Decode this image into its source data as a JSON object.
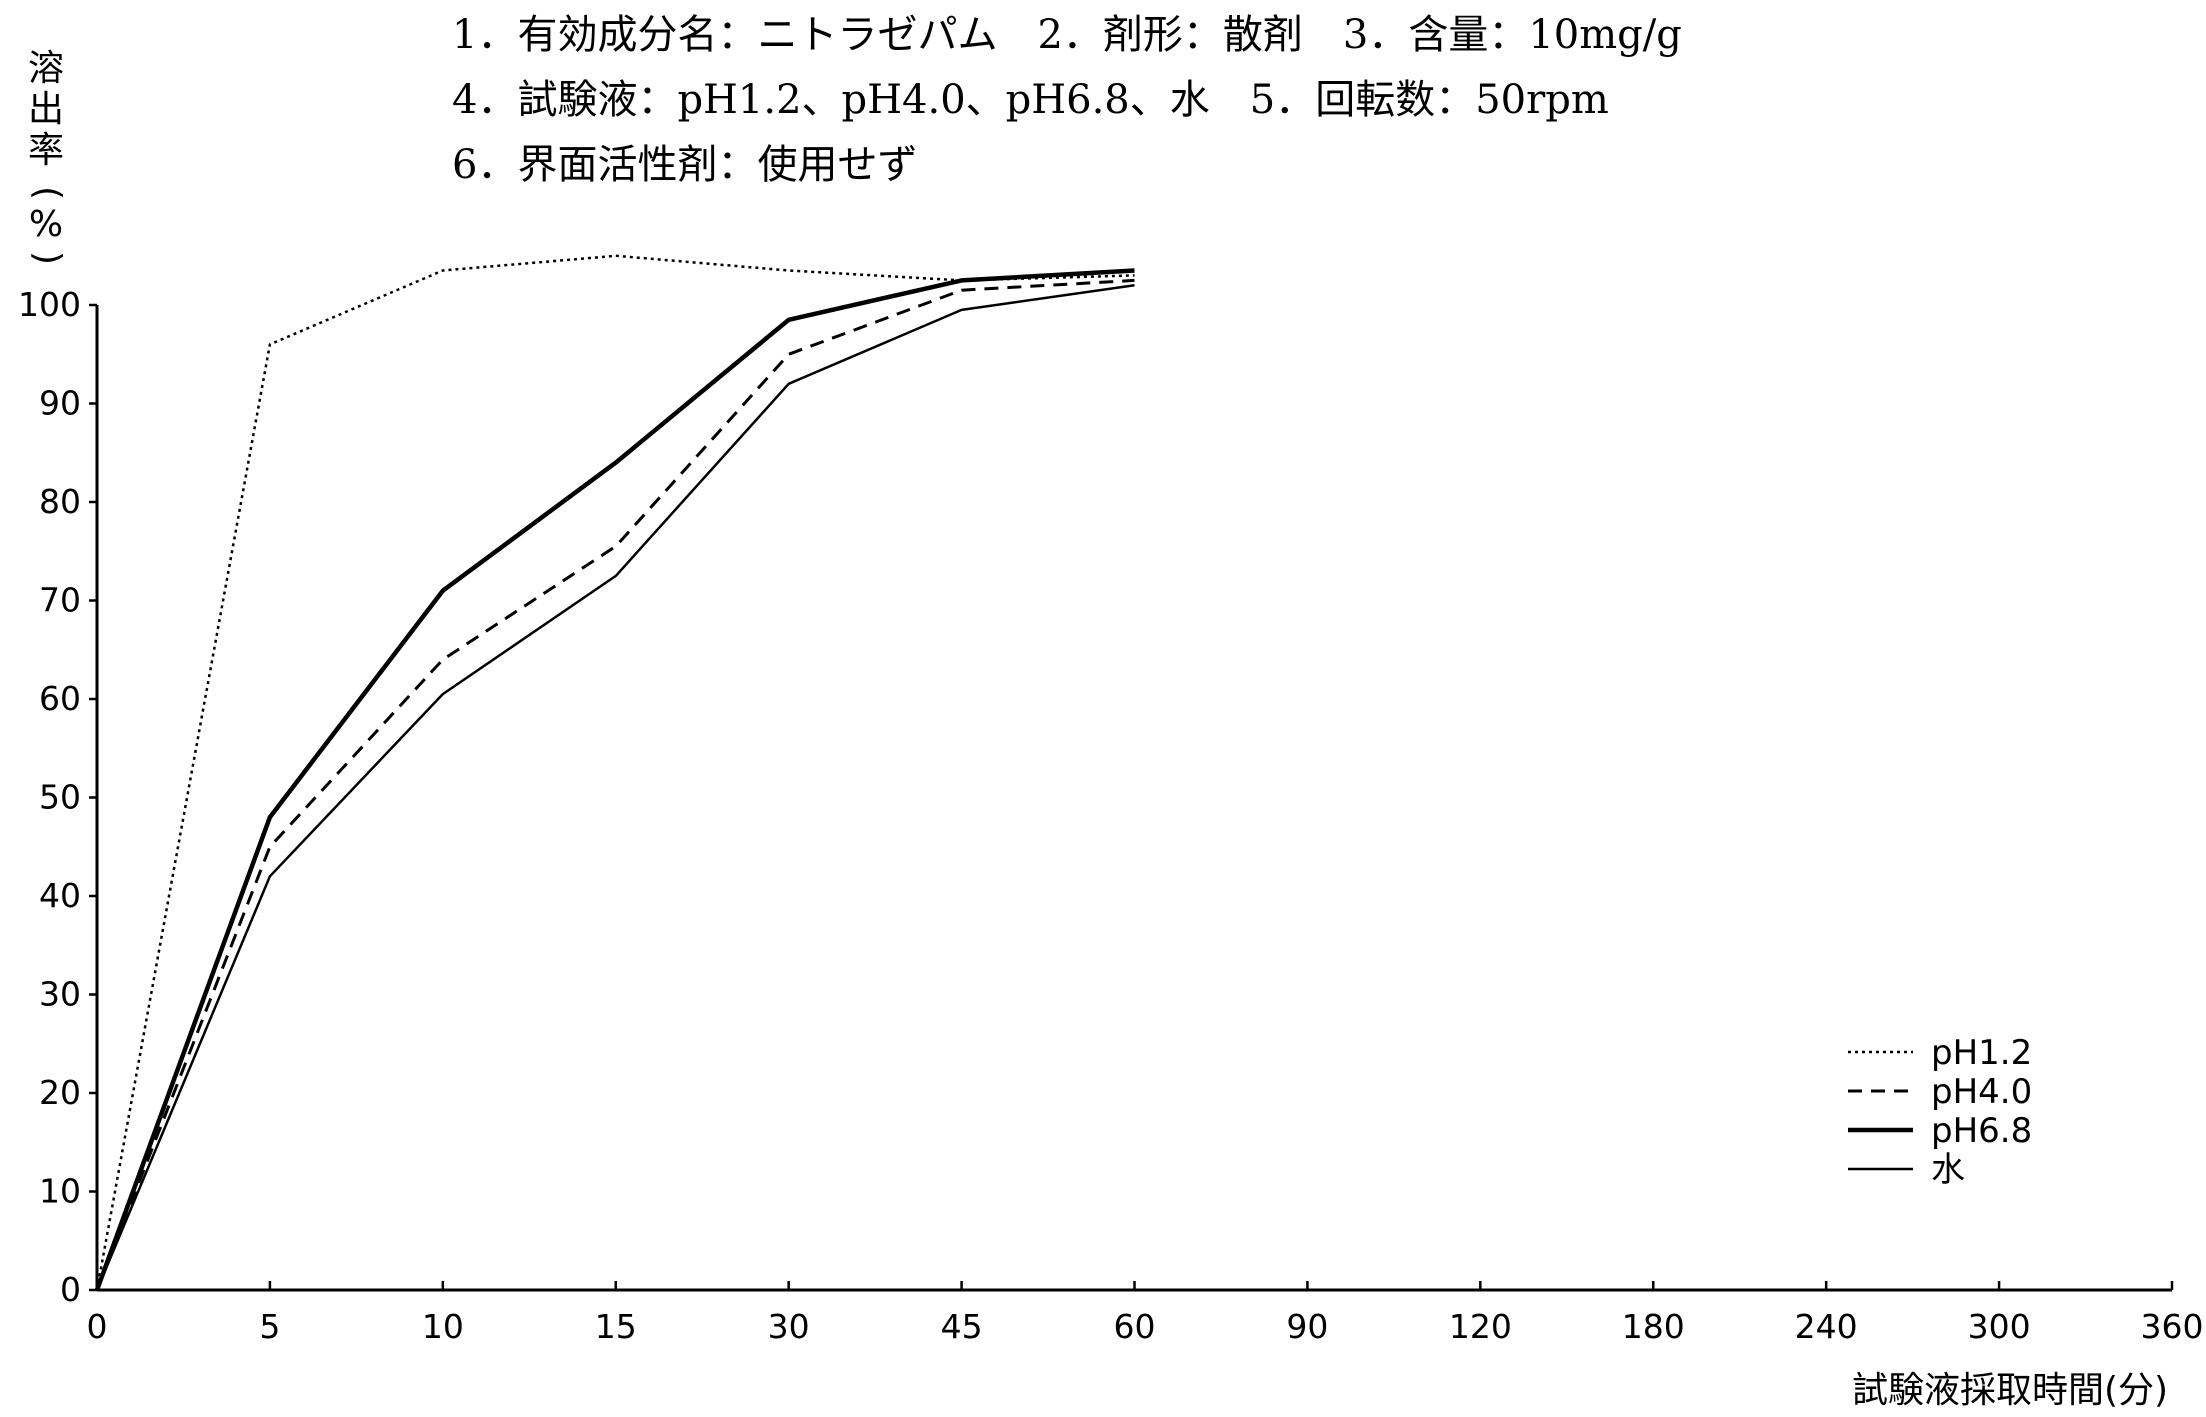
{
  "header": {
    "line1": "1．有効成分名：ニトラゼパム　2．剤形：散剤　3．含量：10mg/g",
    "line2": "4．試験液：pH1.2、pH4.0、pH6.8、水　5．回転数：50rpm",
    "line3": "6．界面活性剤：使用せず"
  },
  "chart_data": {
    "type": "line",
    "ylabel_chars": [
      "溶",
      "出",
      "率",
      "(",
      "%",
      ")"
    ],
    "xlabel": "試験液採取時間(分)",
    "ylim": [
      0,
      100
    ],
    "yticks": [
      0,
      10,
      20,
      30,
      40,
      50,
      60,
      70,
      80,
      90,
      100
    ],
    "x_categories": [
      "0",
      "5",
      "10",
      "15",
      "30",
      "45",
      "60",
      "90",
      "120",
      "180",
      "240",
      "300",
      "360"
    ],
    "grid": false,
    "legend_position": "bottom-right",
    "series": [
      {
        "name": "pH1.2",
        "style": "dotted",
        "values": [
          0,
          96,
          103.5,
          105,
          103.5,
          102.5,
          103
        ]
      },
      {
        "name": "pH4.0",
        "style": "dashed",
        "values": [
          0,
          45,
          64,
          75.5,
          95,
          101.5,
          102.5
        ]
      },
      {
        "name": "pH6.8",
        "style": "solid-thick",
        "values": [
          0,
          48,
          71,
          84,
          98.5,
          102.5,
          103.5
        ]
      },
      {
        "name": "水",
        "style": "solid-thin",
        "values": [
          0,
          42,
          60.5,
          72.5,
          92,
          99.5,
          102
        ]
      }
    ]
  }
}
